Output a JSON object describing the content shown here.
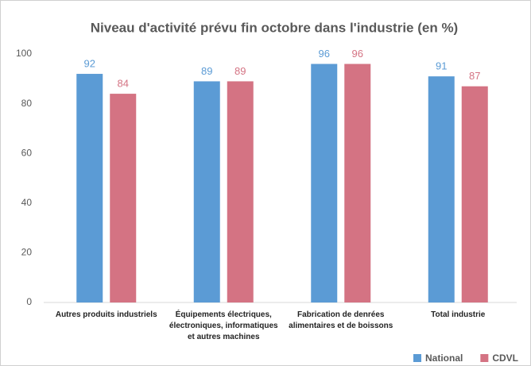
{
  "chart_data": {
    "type": "bar",
    "title": "Niveau d'activité prévu fin octobre dans l'industrie (en %)",
    "categories": [
      "Autres produits industriels",
      "Équipements électriques, électroniques, informatiques et autres machines",
      "Fabrication de denrées alimentaires et de boissons",
      "Total industrie"
    ],
    "series": [
      {
        "name": "National",
        "color": "#5b9bd5",
        "values": [
          92,
          89,
          96,
          91
        ]
      },
      {
        "name": "CDVL",
        "color": "#d47383",
        "values": [
          84,
          89,
          96,
          87
        ]
      }
    ],
    "ylim": [
      0,
      100
    ],
    "yticks": [
      0,
      20,
      40,
      60,
      80,
      100
    ],
    "grid": false,
    "legend": "bottom-right"
  }
}
